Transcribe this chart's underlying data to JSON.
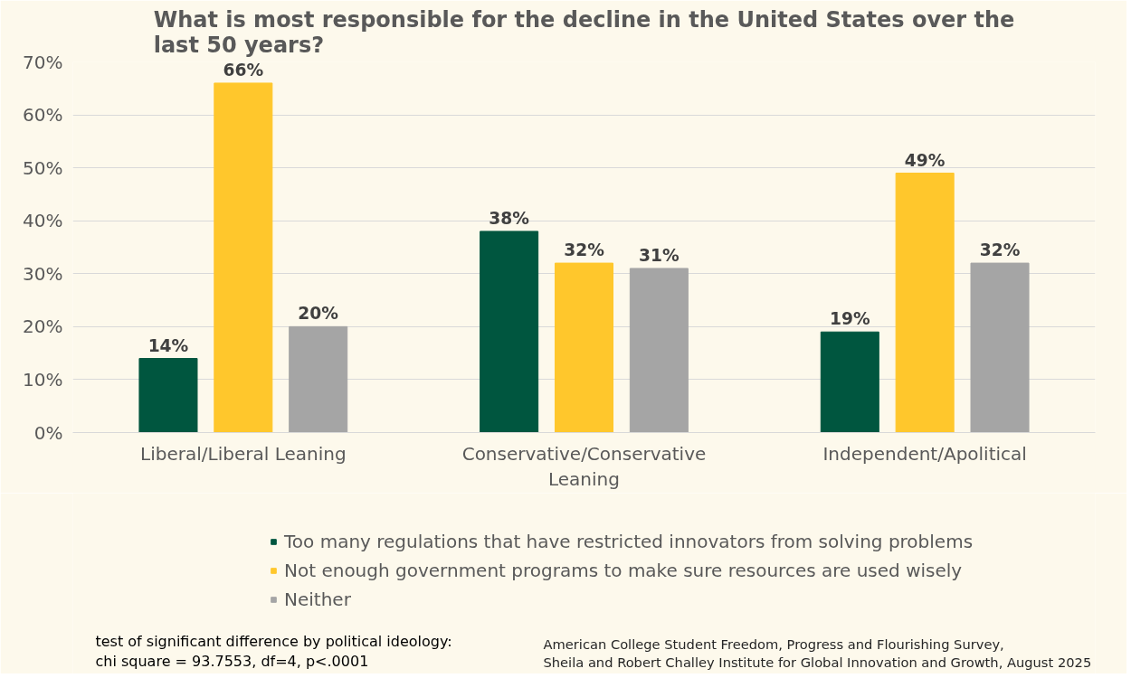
{
  "chart_data": {
    "type": "bar",
    "title": "What is most responsible for the decline in the United States over the last 50 years?",
    "categories": [
      "Liberal/Liberal Leaning",
      "Conservative/Conservative Leaning",
      "Independent/Apolitical"
    ],
    "series": [
      {
        "name": "Too many regulations that have restricted innovators from solving problems",
        "color": "#00563f",
        "values": [
          14,
          38,
          19
        ],
        "value_labels": [
          "14%",
          "38%",
          "19%"
        ]
      },
      {
        "name": "Not enough government programs to make sure resources are used wisely",
        "color": "#ffc72c",
        "values": [
          66,
          32,
          49
        ],
        "value_labels": [
          "66%",
          "32%",
          "49%"
        ]
      },
      {
        "name": "Neither",
        "color": "#a5a5a5",
        "values": [
          20,
          31,
          32
        ],
        "value_labels": [
          "20%",
          "31%",
          "32%"
        ]
      }
    ],
    "ylim": [
      0,
      70
    ],
    "yticks": [
      {
        "value": 0,
        "label": "0%"
      },
      {
        "value": 10,
        "label": "10%"
      },
      {
        "value": 20,
        "label": "20%"
      },
      {
        "value": 30,
        "label": "30%"
      },
      {
        "value": 40,
        "label": "40%"
      },
      {
        "value": 50,
        "label": "50%"
      },
      {
        "value": 60,
        "label": "60%"
      },
      {
        "value": 70,
        "label": "70%"
      }
    ],
    "grid": "y",
    "legend": "bottom",
    "annotations": [
      "test of significant difference by political ideology:\nchi square = 93.7553, df=4, p<.0001",
      "American College Student Freedom, Progress and Flourishing Survey,\nSheila and Robert Challey Institute for Global Innovation and Growth, August 2025"
    ]
  }
}
